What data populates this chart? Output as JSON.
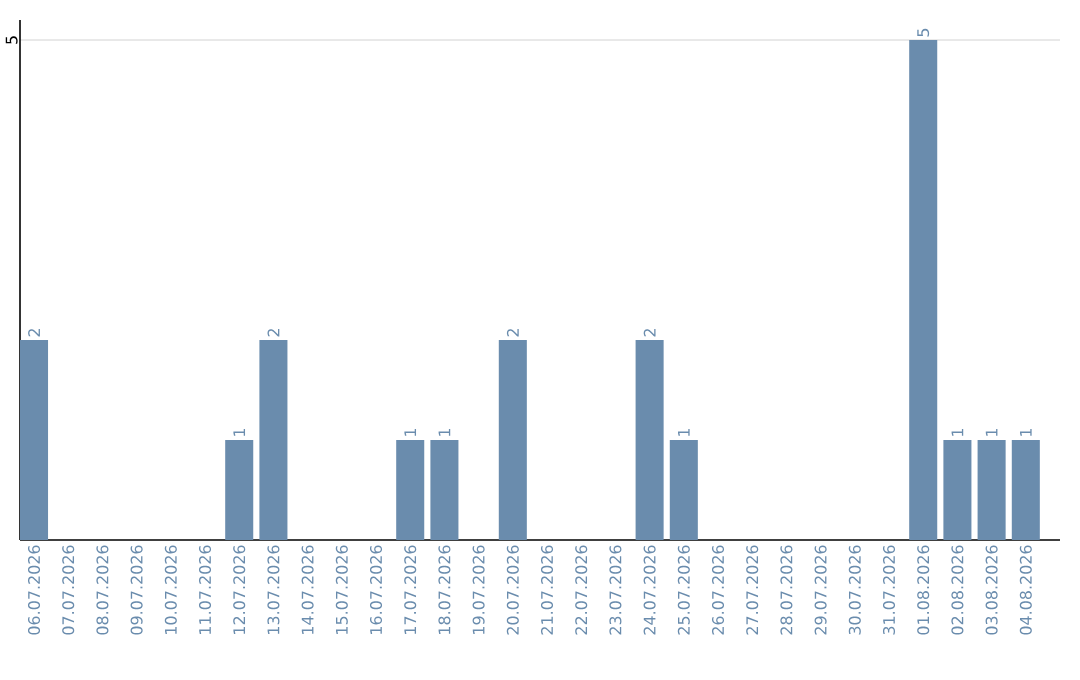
{
  "chart_data": {
    "type": "bar",
    "categories": [
      "06.07.2026",
      "07.07.2026",
      "08.07.2026",
      "09.07.2026",
      "10.07.2026",
      "11.07.2026",
      "12.07.2026",
      "13.07.2026",
      "14.07.2026",
      "15.07.2026",
      "16.07.2026",
      "17.07.2026",
      "18.07.2026",
      "19.07.2026",
      "20.07.2026",
      "21.07.2026",
      "22.07.2026",
      "23.07.2026",
      "24.07.2026",
      "25.07.2026",
      "26.07.2026",
      "27.07.2026",
      "28.07.2026",
      "29.07.2026",
      "30.07.2026",
      "31.07.2026",
      "01.08.2026",
      "02.08.2026",
      "03.08.2026",
      "04.08.2026"
    ],
    "values": [
      2,
      0,
      0,
      0,
      0,
      0,
      1,
      2,
      0,
      0,
      0,
      1,
      1,
      0,
      2,
      0,
      0,
      0,
      2,
      1,
      0,
      0,
      0,
      0,
      0,
      0,
      5,
      1,
      1,
      1
    ],
    "value_labels": [
      "2",
      null,
      null,
      null,
      null,
      null,
      "1",
      "2",
      null,
      null,
      null,
      "1",
      "1",
      null,
      "2",
      null,
      null,
      null,
      "2",
      "1",
      null,
      null,
      null,
      null,
      null,
      null,
      "5",
      "1",
      "1",
      "1"
    ],
    "color": "#6a8cad",
    "ylim": [
      0,
      5.2
    ],
    "yticks": [
      5
    ],
    "grid": "y"
  }
}
